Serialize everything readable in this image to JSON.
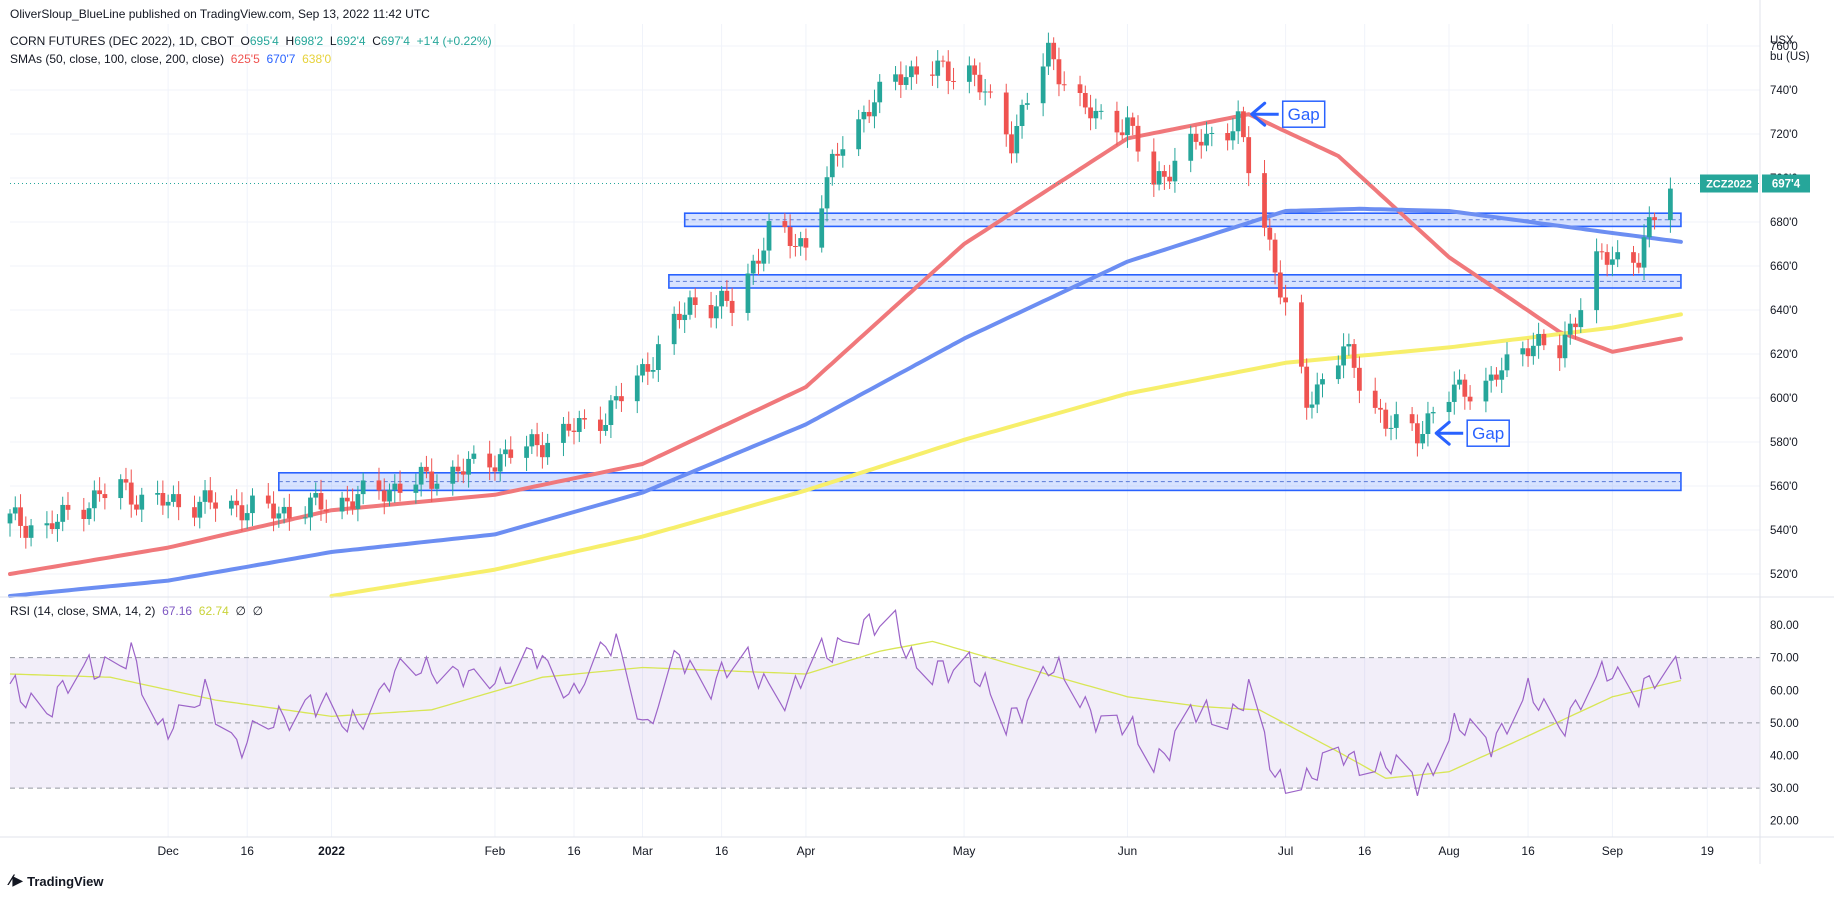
{
  "publisher": "OliverSloup_BlueLine published on TradingView.com, Sep 13, 2022 11:42 UTC",
  "footer_brand": "TradingView",
  "legend": {
    "symbol": "CORN FUTURES (DEC 2022), 1D, CBOT",
    "o_label": "O",
    "o": "695'4",
    "h_label": "H",
    "h": "698'2",
    "l_label": "L",
    "l": "692'4",
    "c_label": "C",
    "c": "697'4",
    "change": "+1'4 (+0.22%)",
    "sma_label": "SMAs (50, close, 100, close, 200, close)",
    "sma50": "625'5",
    "sma100": "670'7",
    "sma200": "638'0",
    "rsi_label": "RSI (14, close, SMA, 14, 2)",
    "rsi": "67.16",
    "rsi_sma": "62.74",
    "rsi_na1": "∅",
    "rsi_na2": "∅"
  },
  "currency_label": [
    "USX",
    "bu (US)"
  ],
  "price_tag": {
    "symbol": "ZCZ2022",
    "value": "697'4"
  },
  "colors": {
    "up": "#26a69a",
    "down": "#ef5350",
    "sma50": "#f0787b",
    "sma100": "#6c8ef2",
    "sma200": "#f7ef6b",
    "rsi": "#9c64c8",
    "rsi_sma": "#d8e655",
    "zone": "#2962ff"
  },
  "chart_data": [
    {
      "type": "candlestick",
      "title": "CORN FUTURES (DEC 2022), 1D, CBOT",
      "ylabel": "USX bu (US)",
      "ylim": [
        510,
        770
      ],
      "y_ticks": [
        520,
        540,
        560,
        580,
        600,
        620,
        640,
        660,
        680,
        700,
        720,
        740,
        760
      ],
      "y_tick_labels": [
        "520'0",
        "540'0",
        "560'0",
        "580'0",
        "600'0",
        "620'0",
        "640'0",
        "660'0",
        "680'0",
        "700'0",
        "720'0",
        "740'0",
        "760'0"
      ],
      "x_tick_labels": [
        "Dec",
        "16",
        "2022",
        "Feb",
        "16",
        "Mar",
        "16",
        "Apr",
        "May",
        "Jun",
        "Jul",
        "16",
        "Aug",
        "16",
        "Sep",
        "19"
      ],
      "x_tick_dates": [
        "2021-12-01",
        "2021-12-16",
        "2022-01-01",
        "2022-02-01",
        "2022-02-16",
        "2022-03-01",
        "2022-03-16",
        "2022-04-01",
        "2022-05-01",
        "2022-06-01",
        "2022-07-01",
        "2022-07-16",
        "2022-08-01",
        "2022-08-16",
        "2022-09-01",
        "2022-09-19"
      ],
      "series": [
        {
          "name": "ZCZ2022",
          "type": "candlestick",
          "anchors": [
            [
              "2021-11-01",
              545
            ],
            [
              "2021-11-08",
              540
            ],
            [
              "2021-11-12",
              548
            ],
            [
              "2021-11-22",
              560
            ],
            [
              "2021-11-26",
              553
            ],
            [
              "2021-12-10",
              552
            ],
            [
              "2021-12-22",
              548
            ],
            [
              "2022-01-03",
              553
            ],
            [
              "2022-01-14",
              560
            ],
            [
              "2022-01-25",
              567
            ],
            [
              "2022-02-08",
              578
            ],
            [
              "2022-02-22",
              592
            ],
            [
              "2022-03-01",
              612
            ],
            [
              "2022-03-10",
              643
            ],
            [
              "2022-03-18",
              642
            ],
            [
              "2022-03-25",
              675
            ],
            [
              "2022-04-01",
              670
            ],
            [
              "2022-04-08",
              718
            ],
            [
              "2022-04-19",
              748
            ],
            [
              "2022-05-02",
              749
            ],
            [
              "2022-05-10",
              718
            ],
            [
              "2022-05-17",
              757
            ],
            [
              "2022-05-24",
              730
            ],
            [
              "2022-06-01",
              724
            ],
            [
              "2022-06-06",
              698
            ],
            [
              "2022-06-15",
              718
            ],
            [
              "2022-06-22",
              724
            ],
            [
              "2022-06-28",
              670
            ],
            [
              "2022-07-05",
              598
            ],
            [
              "2022-07-12",
              622
            ],
            [
              "2022-07-20",
              588
            ],
            [
              "2022-07-26",
              585
            ],
            [
              "2022-08-02",
              603
            ],
            [
              "2022-08-09",
              607
            ],
            [
              "2022-08-16",
              626
            ],
            [
              "2022-08-22",
              620
            ],
            [
              "2022-08-29",
              662
            ],
            [
              "2022-09-06",
              665
            ],
            [
              "2022-09-12",
              698
            ]
          ]
        }
      ],
      "sma_series": [
        {
          "name": "SMA 50",
          "value": "625'5",
          "anchors": [
            [
              "2021-11-01",
              520
            ],
            [
              "2021-12-01",
              532
            ],
            [
              "2022-01-01",
              549
            ],
            [
              "2022-02-01",
              556
            ],
            [
              "2022-03-01",
              570
            ],
            [
              "2022-04-01",
              605
            ],
            [
              "2022-05-01",
              670
            ],
            [
              "2022-06-01",
              718
            ],
            [
              "2022-06-24",
              729
            ],
            [
              "2022-07-11",
              710
            ],
            [
              "2022-08-01",
              664
            ],
            [
              "2022-08-22",
              630
            ],
            [
              "2022-09-01",
              621
            ],
            [
              "2022-09-14",
              627
            ]
          ]
        },
        {
          "name": "SMA 100",
          "value": "670'7",
          "anchors": [
            [
              "2021-11-01",
              510
            ],
            [
              "2021-12-01",
              517
            ],
            [
              "2022-01-01",
              530
            ],
            [
              "2022-02-01",
              538
            ],
            [
              "2022-03-01",
              557
            ],
            [
              "2022-04-01",
              588
            ],
            [
              "2022-05-01",
              627
            ],
            [
              "2022-06-01",
              662
            ],
            [
              "2022-07-01",
              685
            ],
            [
              "2022-07-15",
              686
            ],
            [
              "2022-08-01",
              685
            ],
            [
              "2022-09-01",
              675
            ],
            [
              "2022-09-14",
              671
            ]
          ]
        },
        {
          "name": "SMA 200",
          "value": "638'0",
          "anchors": [
            [
              "2022-01-01",
              510
            ],
            [
              "2022-02-01",
              522
            ],
            [
              "2022-03-01",
              537
            ],
            [
              "2022-04-01",
              558
            ],
            [
              "2022-05-01",
              581
            ],
            [
              "2022-06-01",
              602
            ],
            [
              "2022-07-01",
              616
            ],
            [
              "2022-08-01",
              623
            ],
            [
              "2022-09-01",
              632
            ],
            [
              "2022-09-14",
              638
            ]
          ]
        }
      ],
      "zones": [
        {
          "start": "2021-12-22",
          "end": "2022-09-14",
          "low": 558,
          "high": 566
        },
        {
          "start": "2022-03-06",
          "end": "2022-09-14",
          "low": 650,
          "high": 656
        },
        {
          "start": "2022-03-09",
          "end": "2022-09-14",
          "low": 678,
          "high": 684
        }
      ],
      "annotations": [
        {
          "text": "Gap",
          "date": "2022-06-24",
          "price": 729
        },
        {
          "text": "Gap",
          "date": "2022-07-29",
          "price": 584
        }
      ],
      "last_price": 697.5
    },
    {
      "type": "line",
      "title": "RSI (14, close, SMA, 14, 2)",
      "ylim": [
        15,
        88
      ],
      "y_ticks": [
        20,
        30,
        40,
        50,
        60,
        70,
        80
      ],
      "y_tick_labels": [
        "20.00",
        "30.00",
        "40.00",
        "50.00",
        "60.00",
        "70.00",
        "80.00"
      ],
      "band": [
        30,
        70
      ],
      "midline": 50,
      "series": [
        {
          "name": "RSI",
          "value": "67.16",
          "anchors": [
            [
              "2021-11-01",
              60
            ],
            [
              "2021-11-08",
              55
            ],
            [
              "2021-11-16",
              67
            ],
            [
              "2021-11-24",
              70
            ],
            [
              "2021-11-29",
              48
            ],
            [
              "2021-12-08",
              58
            ],
            [
              "2021-12-14",
              44
            ],
            [
              "2021-12-22",
              50
            ],
            [
              "2021-12-28",
              58
            ],
            [
              "2022-01-04",
              48
            ],
            [
              "2022-01-12",
              63
            ],
            [
              "2022-01-20",
              68
            ],
            [
              "2022-01-28",
              62
            ],
            [
              "2022-02-04",
              66
            ],
            [
              "2022-02-08",
              70
            ],
            [
              "2022-02-16",
              60
            ],
            [
              "2022-02-24",
              75
            ],
            [
              "2022-03-02",
              48
            ],
            [
              "2022-03-08",
              70
            ],
            [
              "2022-03-14",
              63
            ],
            [
              "2022-03-21",
              68
            ],
            [
              "2022-03-29",
              57
            ],
            [
              "2022-04-04",
              72
            ],
            [
              "2022-04-12",
              78
            ],
            [
              "2022-04-18",
              82
            ],
            [
              "2022-04-23",
              62
            ],
            [
              "2022-05-02",
              70
            ],
            [
              "2022-05-09",
              48
            ],
            [
              "2022-05-17",
              68
            ],
            [
              "2022-05-24",
              55
            ],
            [
              "2022-06-01",
              48
            ],
            [
              "2022-06-06",
              38
            ],
            [
              "2022-06-13",
              52
            ],
            [
              "2022-06-20",
              52
            ],
            [
              "2022-06-24",
              60
            ],
            [
              "2022-06-29",
              32
            ],
            [
              "2022-07-06",
              34
            ],
            [
              "2022-07-12",
              40
            ],
            [
              "2022-07-18",
              38
            ],
            [
              "2022-07-26",
              32
            ],
            [
              "2022-08-02",
              48
            ],
            [
              "2022-08-09",
              45
            ],
            [
              "2022-08-16",
              58
            ],
            [
              "2022-08-22",
              50
            ],
            [
              "2022-08-29",
              62
            ],
            [
              "2022-09-01",
              66
            ],
            [
              "2022-09-06",
              60
            ],
            [
              "2022-09-14",
              67
            ]
          ]
        },
        {
          "name": "RSI SMA",
          "value": "62.74",
          "anchors": [
            [
              "2021-11-01",
              65
            ],
            [
              "2021-11-20",
              64
            ],
            [
              "2021-12-10",
              57
            ],
            [
              "2022-01-01",
              52
            ],
            [
              "2022-01-20",
              54
            ],
            [
              "2022-02-10",
              64
            ],
            [
              "2022-03-01",
              67
            ],
            [
              "2022-04-01",
              65
            ],
            [
              "2022-04-15",
              72
            ],
            [
              "2022-04-25",
              75
            ],
            [
              "2022-05-10",
              68
            ],
            [
              "2022-06-01",
              58
            ],
            [
              "2022-06-15",
              55
            ],
            [
              "2022-06-26",
              54
            ],
            [
              "2022-07-10",
              42
            ],
            [
              "2022-07-20",
              33
            ],
            [
              "2022-08-01",
              35
            ],
            [
              "2022-08-16",
              46
            ],
            [
              "2022-09-01",
              58
            ],
            [
              "2022-09-14",
              63
            ]
          ]
        }
      ]
    }
  ]
}
